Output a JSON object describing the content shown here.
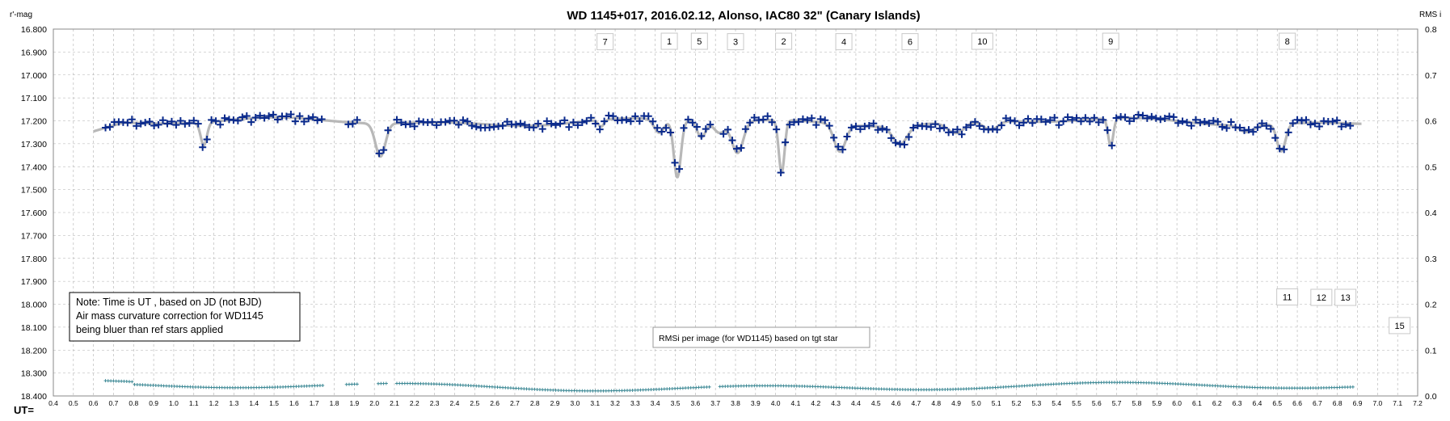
{
  "chart_data": {
    "type": "scatter",
    "title": "WD 1145+017,  2016.02.12,  Alonso,  IAC80  32\" (Canary Islands)",
    "ylabel_left": "r'-mag",
    "ylabel_right": "RMS i",
    "xlabel": "UT=",
    "x_range": [
      0.4,
      7.2
    ],
    "x_ticks": [
      "0.4",
      "0.5",
      "0.6",
      "0.7",
      "0.8",
      "0.9",
      "1.0",
      "1.1",
      "1.2",
      "1.3",
      "1.4",
      "1.5",
      "1.6",
      "1.7",
      "1.8",
      "1.9",
      "2.0",
      "2.1",
      "2.2",
      "2.3",
      "2.4",
      "2.5",
      "2.6",
      "2.7",
      "2.8",
      "2.9",
      "3.0",
      "3.1",
      "3.2",
      "3.3",
      "3.4",
      "3.5",
      "3.6",
      "3.7",
      "3.8",
      "3.9",
      "4.0",
      "4.1",
      "4.2",
      "4.3",
      "4.4",
      "4.5",
      "4.6",
      "4.7",
      "4.8",
      "4.9",
      "5.0",
      "5.1",
      "5.2",
      "5.3",
      "5.4",
      "5.5",
      "5.6",
      "5.7",
      "5.8",
      "5.9",
      "6.0",
      "6.1",
      "6.2",
      "6.3",
      "6.4",
      "6.5",
      "6.6",
      "6.7",
      "6.8",
      "6.9",
      "7.0",
      "7.1",
      "7.2"
    ],
    "y_left_range": [
      16.8,
      18.4
    ],
    "y_left_reversed": true,
    "y_left_ticks": [
      "16.800",
      "16.900",
      "17.000",
      "17.100",
      "17.200",
      "17.300",
      "17.400",
      "17.500",
      "17.600",
      "17.700",
      "17.800",
      "17.900",
      "18.000",
      "18.100",
      "18.200",
      "18.300",
      "18.400"
    ],
    "y_right_range": [
      0.0,
      0.8
    ],
    "y_right_ticks": [
      "0.8",
      "0.7",
      "0.6",
      "0.5",
      "0.4",
      "0.3",
      "0.2",
      "0.1",
      "0.0"
    ],
    "grid": true,
    "colors": {
      "data": "#0a2a8c",
      "model": "#b8b8b8",
      "rms": "#3f8a96",
      "grid": "#b0b0b0"
    },
    "model_baseline": 17.205,
    "model_dips": [
      [
        1.15,
        0.1,
        0.022
      ],
      [
        2.03,
        0.145,
        0.035
      ],
      [
        3.13,
        0.03,
        0.02
      ],
      [
        3.42,
        0.06,
        0.035
      ],
      [
        3.51,
        0.25,
        0.025
      ],
      [
        3.63,
        0.07,
        0.03
      ],
      [
        3.81,
        0.14,
        0.04
      ],
      [
        3.72,
        0.05,
        0.04
      ],
      [
        4.03,
        0.23,
        0.02
      ],
      [
        4.32,
        0.12,
        0.04
      ],
      [
        4.62,
        0.08,
        0.05
      ],
      [
        4.9,
        0.05,
        0.06
      ],
      [
        5.07,
        0.04,
        0.05
      ],
      [
        5.67,
        0.12,
        0.018
      ],
      [
        6.52,
        0.12,
        0.03
      ],
      [
        6.35,
        0.03,
        0.05
      ]
    ],
    "gaps": [
      [
        1.75,
        1.85
      ],
      [
        1.92,
        2.01
      ],
      [
        2.07,
        2.1
      ],
      [
        3.68,
        3.72
      ]
    ],
    "data_x_start": 0.66,
    "data_x_end": 6.88,
    "data_x_step": 0.022,
    "rms_level": 0.02,
    "annotations": [
      {
        "label": "7",
        "x": 3.15,
        "y": 16.855
      },
      {
        "label": "1",
        "x": 3.47,
        "y": 16.853
      },
      {
        "label": "5",
        "x": 3.62,
        "y": 16.853
      },
      {
        "label": "3",
        "x": 3.8,
        "y": 16.855
      },
      {
        "label": "2",
        "x": 4.04,
        "y": 16.853
      },
      {
        "label": "4",
        "x": 4.34,
        "y": 16.855
      },
      {
        "label": "6",
        "x": 4.67,
        "y": 16.855
      },
      {
        "label": "10",
        "x": 5.03,
        "y": 16.853
      },
      {
        "label": "9",
        "x": 5.67,
        "y": 16.853
      },
      {
        "label": "8",
        "x": 6.55,
        "y": 16.853
      },
      {
        "label": "11",
        "x": 6.55,
        "y": 17.968
      },
      {
        "label": "12",
        "x": 6.72,
        "y": 17.97
      },
      {
        "label": "13",
        "x": 6.84,
        "y": 17.97
      },
      {
        "label": "15",
        "x": 7.11,
        "y": 18.093
      }
    ]
  },
  "note": {
    "lines": [
      "Note: Time is UT , based on JD (not BJD)",
      "Air mass  curvature correction for WD1145",
      "being bluer than ref stars applied"
    ]
  },
  "rms_note": "RMSi per image (for WD1145) based on tgt star"
}
